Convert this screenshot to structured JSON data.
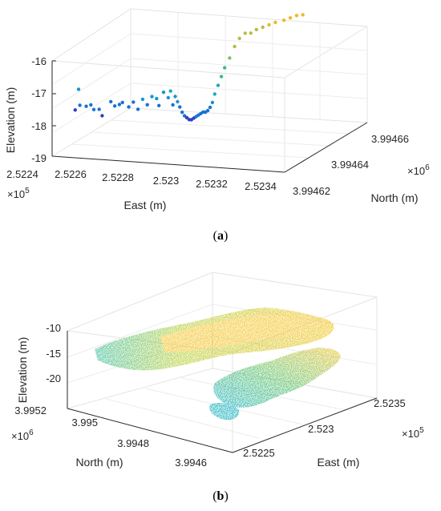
{
  "chart_data": [
    {
      "id": "a",
      "type": "scatter",
      "caption": "(a)",
      "xlabel": "East (m)",
      "ylabel": "North (m)",
      "zlabel": "Elevation (m)",
      "x_ticks": [
        "2.5224",
        "2.5226",
        "2.5228",
        "2.523",
        "2.5232",
        "2.5234"
      ],
      "x_exponent": "×10",
      "x_exponent_power": "5",
      "y_ticks": [
        "3.99462",
        "3.99464",
        "3.99466"
      ],
      "y_exponent": "×10",
      "y_exponent_power": "6",
      "z_ticks": [
        "-16",
        "-17",
        "-18",
        "-19"
      ],
      "xlim": [
        252240,
        252340
      ],
      "ylim": [
        3994620,
        3994670
      ],
      "zlim": [
        -19,
        -15.7
      ],
      "colormap": "parula",
      "grid": true,
      "points": [
        [
          252240,
          3994636,
          -17.5
        ],
        [
          252240,
          3994634,
          -18.05
        ],
        [
          252242,
          3994634,
          -17.9
        ],
        [
          252244,
          3994635,
          -17.95
        ],
        [
          252246,
          3994635,
          -17.9
        ],
        [
          252248,
          3994634,
          -18.0
        ],
        [
          252251,
          3994633,
          -17.95
        ],
        [
          252253,
          3994632,
          -18.1
        ],
        [
          252256,
          3994633,
          -17.7
        ],
        [
          252257,
          3994634,
          -17.85
        ],
        [
          252259,
          3994634,
          -17.8
        ],
        [
          252261,
          3994633,
          -17.7
        ],
        [
          252263,
          3994634,
          -17.85
        ],
        [
          252265,
          3994634,
          -17.7
        ],
        [
          252267,
          3994634,
          -17.9
        ],
        [
          252269,
          3994634,
          -17.6
        ],
        [
          252271,
          3994634,
          -17.75
        ],
        [
          252273,
          3994634,
          -17.5
        ],
        [
          252275,
          3994634,
          -17.55
        ],
        [
          252276,
          3994634,
          -17.75
        ],
        [
          252278,
          3994634,
          -17.35
        ],
        [
          252280,
          3994634,
          -17.5
        ],
        [
          252281,
          3994634,
          -17.3
        ],
        [
          252282,
          3994634,
          -17.7
        ],
        [
          252283,
          3994634,
          -17.45
        ],
        [
          252284,
          3994634,
          -17.6
        ],
        [
          252285,
          3994634,
          -17.75
        ],
        [
          252286,
          3994634,
          -17.9
        ],
        [
          252287,
          3994634,
          -18.0
        ],
        [
          252288,
          3994634,
          -18.05
        ],
        [
          252289,
          3994634,
          -18.1
        ],
        [
          252290,
          3994634,
          -18.1
        ],
        [
          252291,
          3994634,
          -18.05
        ],
        [
          252292,
          3994634,
          -18.0
        ],
        [
          252293,
          3994634,
          -17.95
        ],
        [
          252294,
          3994634,
          -17.9
        ],
        [
          252295,
          3994634,
          -17.85
        ],
        [
          252296,
          3994634,
          -17.85
        ],
        [
          252297,
          3994634,
          -17.8
        ],
        [
          252298,
          3994634,
          -17.7
        ],
        [
          252299,
          3994634,
          -17.55
        ],
        [
          252300,
          3994634,
          -17.3
        ],
        [
          252300,
          3994636,
          -17.1
        ],
        [
          252300,
          3994638,
          -16.9
        ],
        [
          252300,
          3994640,
          -16.7
        ],
        [
          252300,
          3994643,
          -16.5
        ],
        [
          252300,
          3994646,
          -16.25
        ],
        [
          252300,
          3994649,
          -16.1
        ],
        [
          252301,
          3994651,
          -16.0
        ],
        [
          252302,
          3994653,
          -16.05
        ],
        [
          252303,
          3994655,
          -16.0
        ],
        [
          252305,
          3994656,
          -15.95
        ],
        [
          252307,
          3994657,
          -15.9
        ],
        [
          252309,
          3994658,
          -15.85
        ],
        [
          252312,
          3994659,
          -15.8
        ],
        [
          252314,
          3994660,
          -15.75
        ],
        [
          252316,
          3994661,
          -15.7
        ],
        [
          252318,
          3994662,
          -15.7
        ]
      ]
    },
    {
      "id": "b",
      "type": "scatter",
      "caption": "(b)",
      "xlabel": "East (m)",
      "ylabel": "North (m)",
      "zlabel": "Elevation (m)",
      "x_ticks": [
        "2.5225",
        "2.523",
        "2.5235"
      ],
      "x_exponent": "×10",
      "x_exponent_power": "5",
      "y_ticks": [
        "3.9952",
        "3.995",
        "3.9948",
        "3.9946"
      ],
      "y_exponent": "×10",
      "y_exponent_power": "6",
      "z_ticks": [
        "-10",
        "-15",
        "-20"
      ],
      "zlim": [
        -23,
        -8
      ],
      "colormap": "parula",
      "grid": true,
      "description_values": {
        "left_mass_elevation": [
          -17,
          -10
        ],
        "right_mass_elevation": [
          -22,
          -12
        ]
      }
    }
  ],
  "captions": {
    "a_letter": "a",
    "b_letter": "b"
  }
}
